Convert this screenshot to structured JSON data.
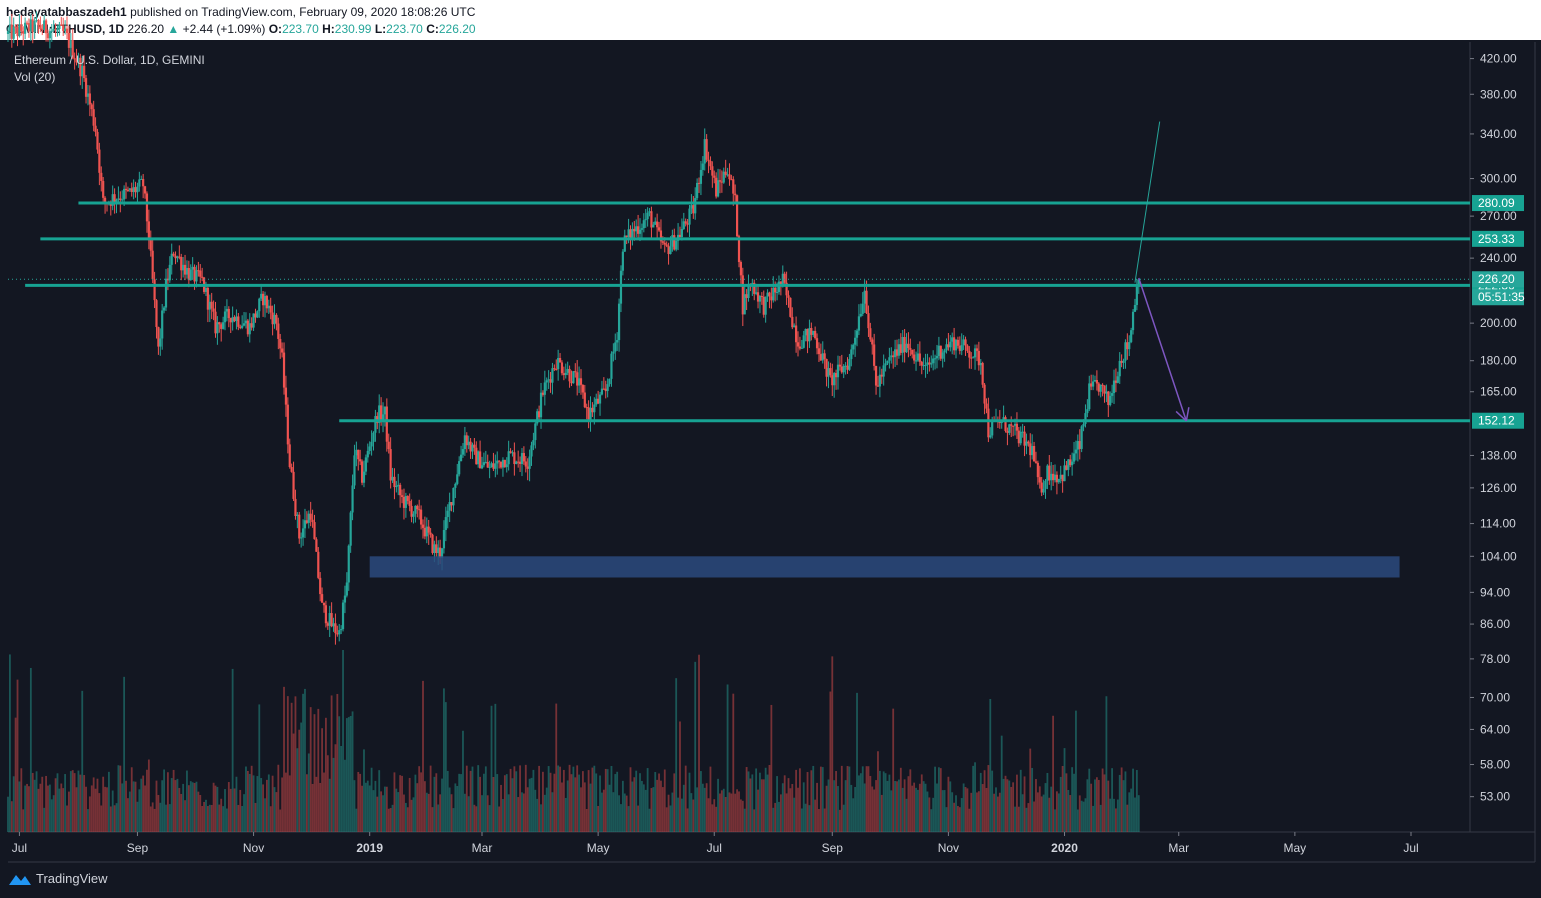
{
  "header": {
    "author": "hedayatabbaszadeh1",
    "published_text": "published on TradingView.com, February 09, 2020 18:08:26 UTC",
    "symbol": "GEMINI:ETHUSD, 1D",
    "last_price": "226.20",
    "change": "+2.44 (+1.09%)",
    "open_label": "O:",
    "open": "223.70",
    "high_label": "H:",
    "high": "230.99",
    "low_label": "L:",
    "low": "223.70",
    "close_label": "C:",
    "close": "226.20"
  },
  "legend": {
    "series_title": "Ethereum / U.S. Dollar, 1D, GEMINI",
    "volume_label": "Vol (20)"
  },
  "footer": {
    "brand": "TradingView"
  },
  "chart_data": {
    "type": "candlestick",
    "y_scale": "log",
    "y_range": [
      48,
      440
    ],
    "x_range": [
      "2018-06-25",
      "2020-08-01"
    ],
    "x_ticks": [
      {
        "date": "2018-07-01",
        "label": "Jul"
      },
      {
        "date": "2018-09-01",
        "label": "Sep"
      },
      {
        "date": "2018-11-01",
        "label": "Nov"
      },
      {
        "date": "2019-01-01",
        "label": "2019"
      },
      {
        "date": "2019-03-01",
        "label": "Mar"
      },
      {
        "date": "2019-05-01",
        "label": "May"
      },
      {
        "date": "2019-07-01",
        "label": "Jul"
      },
      {
        "date": "2019-09-01",
        "label": "Sep"
      },
      {
        "date": "2019-11-01",
        "label": "Nov"
      },
      {
        "date": "2020-01-01",
        "label": "2020"
      },
      {
        "date": "2020-03-01",
        "label": "Mar"
      },
      {
        "date": "2020-05-01",
        "label": "May"
      },
      {
        "date": "2020-07-01",
        "label": "Jul"
      }
    ],
    "y_ticks": [
      "420.00",
      "380.00",
      "340.00",
      "300.00",
      "270.00",
      "240.00",
      "200.00",
      "180.00",
      "165.00",
      "138.00",
      "126.00",
      "114.00",
      "104.00",
      "94.00",
      "86.00",
      "78.00",
      "70.00",
      "64.00",
      "58.00",
      "53.00"
    ],
    "price_path": [
      [
        "2018-06-25",
        450
      ],
      [
        "2018-07-10",
        460
      ],
      [
        "2018-07-25",
        450
      ],
      [
        "2018-08-03",
        405
      ],
      [
        "2018-08-10",
        345
      ],
      [
        "2018-08-14",
        280
      ],
      [
        "2018-08-20",
        285
      ],
      [
        "2018-08-28",
        288
      ],
      [
        "2018-09-04",
        295
      ],
      [
        "2018-09-07",
        255
      ],
      [
        "2018-09-12",
        185
      ],
      [
        "2018-09-16",
        222
      ],
      [
        "2018-09-20",
        245
      ],
      [
        "2018-09-28",
        230
      ],
      [
        "2018-10-05",
        225
      ],
      [
        "2018-10-12",
        198
      ],
      [
        "2018-10-20",
        205
      ],
      [
        "2018-10-30",
        198
      ],
      [
        "2018-11-06",
        215
      ],
      [
        "2018-11-13",
        200
      ],
      [
        "2018-11-16",
        180
      ],
      [
        "2018-11-20",
        135
      ],
      [
        "2018-11-25",
        110
      ],
      [
        "2018-12-01",
        118
      ],
      [
        "2018-12-07",
        90
      ],
      [
        "2018-12-13",
        85
      ],
      [
        "2018-12-16",
        84
      ],
      [
        "2018-12-20",
        96
      ],
      [
        "2018-12-24",
        140
      ],
      [
        "2018-12-28",
        130
      ],
      [
        "2019-01-05",
        155
      ],
      [
        "2019-01-09",
        155
      ],
      [
        "2019-01-12",
        130
      ],
      [
        "2019-01-18",
        122
      ],
      [
        "2019-01-27",
        116
      ],
      [
        "2019-02-04",
        106
      ],
      [
        "2019-02-07",
        105
      ],
      [
        "2019-02-12",
        120
      ],
      [
        "2019-02-20",
        146
      ],
      [
        "2019-02-25",
        138
      ],
      [
        "2019-03-05",
        133
      ],
      [
        "2019-03-15",
        138
      ],
      [
        "2019-03-25",
        136
      ],
      [
        "2019-04-02",
        165
      ],
      [
        "2019-04-09",
        180
      ],
      [
        "2019-04-20",
        170
      ],
      [
        "2019-04-26",
        155
      ],
      [
        "2019-05-05",
        165
      ],
      [
        "2019-05-11",
        195
      ],
      [
        "2019-05-14",
        250
      ],
      [
        "2019-05-20",
        260
      ],
      [
        "2019-05-28",
        270
      ],
      [
        "2019-06-05",
        245
      ],
      [
        "2019-06-12",
        255
      ],
      [
        "2019-06-20",
        275
      ],
      [
        "2019-06-26",
        330
      ],
      [
        "2019-07-02",
        290
      ],
      [
        "2019-07-08",
        310
      ],
      [
        "2019-07-12",
        280
      ],
      [
        "2019-07-16",
        210
      ],
      [
        "2019-07-20",
        225
      ],
      [
        "2019-07-27",
        210
      ],
      [
        "2019-08-06",
        225
      ],
      [
        "2019-08-14",
        190
      ],
      [
        "2019-08-22",
        195
      ],
      [
        "2019-08-31",
        170
      ],
      [
        "2019-09-10",
        180
      ],
      [
        "2019-09-18",
        220
      ],
      [
        "2019-09-24",
        168
      ],
      [
        "2019-10-01",
        180
      ],
      [
        "2019-10-10",
        190
      ],
      [
        "2019-10-20",
        175
      ],
      [
        "2019-10-27",
        185
      ],
      [
        "2019-11-04",
        190
      ],
      [
        "2019-11-12",
        185
      ],
      [
        "2019-11-18",
        180
      ],
      [
        "2019-11-22",
        148
      ],
      [
        "2019-11-28",
        152
      ],
      [
        "2019-12-05",
        148
      ],
      [
        "2019-12-15",
        140
      ],
      [
        "2019-12-19",
        125
      ],
      [
        "2019-12-23",
        132
      ],
      [
        "2019-12-30",
        130
      ],
      [
        "2020-01-04",
        135
      ],
      [
        "2020-01-09",
        142
      ],
      [
        "2020-01-14",
        165
      ],
      [
        "2020-01-19",
        168
      ],
      [
        "2020-01-24",
        160
      ],
      [
        "2020-01-30",
        180
      ],
      [
        "2020-02-04",
        190
      ],
      [
        "2020-02-07",
        215
      ],
      [
        "2020-02-09",
        226.2
      ]
    ],
    "horizontal_levels": [
      {
        "value": 280.09,
        "label": "280.09",
        "from": "2018-08-01",
        "to": "2020-08-01"
      },
      {
        "value": 253.33,
        "label": "253.33",
        "from": "2018-07-12",
        "to": "2020-08-01"
      },
      {
        "value": 222.36,
        "label": "222.36",
        "from": "2018-07-04",
        "to": "2020-08-01"
      },
      {
        "value": 152.12,
        "label": "152.12",
        "from": "2018-12-16",
        "to": "2020-08-01"
      }
    ],
    "support_zone": {
      "low": 98,
      "high": 104,
      "from": "2019-01-01",
      "to": "2020-06-25"
    },
    "projection_up": {
      "from": [
        "2020-02-07",
        224
      ],
      "to": [
        "2020-02-20",
        352
      ]
    },
    "projection_down": {
      "from": [
        "2020-02-09",
        227
      ],
      "to": [
        "2020-03-05",
        152
      ]
    },
    "price_badges": [
      {
        "value": 226.2,
        "label": "226.20",
        "color": "#26a69a"
      },
      {
        "countdown": "05:51:35",
        "color": "#26a69a"
      }
    ],
    "colors": {
      "up": "#26a69a",
      "down": "#ef5350",
      "level": "#17a393",
      "zone": "#2b4a7e",
      "arrow_down": "#7e57c2",
      "arrow_up": "#26a69a"
    }
  }
}
